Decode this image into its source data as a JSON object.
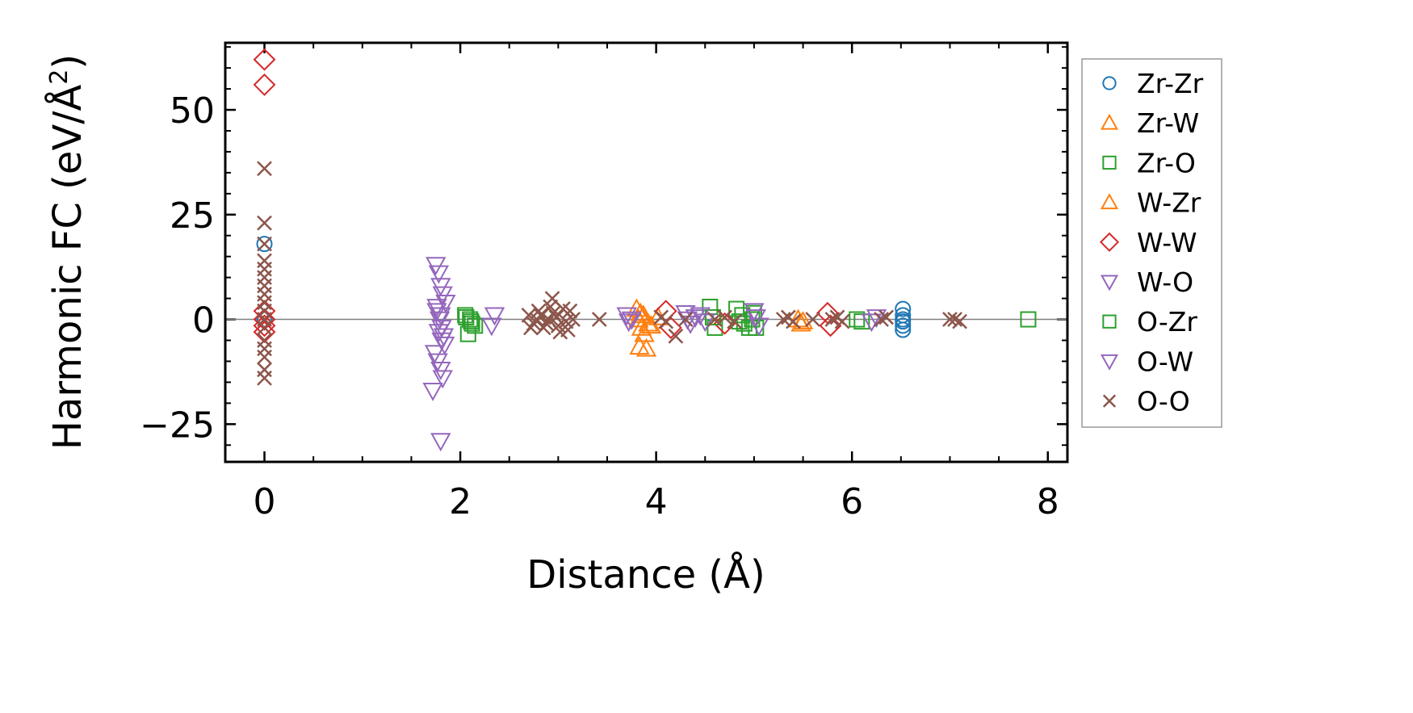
{
  "chart_data": {
    "type": "scatter",
    "xlabel": "Distance (Å)",
    "ylabel": "Harmonic FC (eV/Å",
    "ylabel_superscript": "2",
    "ylabel_suffix": ")",
    "xlim": [
      -0.4,
      8.2
    ],
    "ylim": [
      -34,
      66
    ],
    "xticks": [
      0,
      2,
      4,
      6,
      8
    ],
    "xtick_labels": [
      "0",
      "2",
      "4",
      "6",
      "8"
    ],
    "yticks": [
      -25,
      0,
      25,
      50
    ],
    "ytick_labels": [
      "−25",
      "0",
      "25",
      "50"
    ],
    "zero_line": 0,
    "legend_position": "right, outside plot",
    "series": [
      {
        "name": "Zr-Zr",
        "marker": "circle",
        "color": "#1f77b4",
        "x": [
          0,
          0,
          6.52,
          6.52,
          6.52,
          6.52,
          6.52,
          6.52
        ],
        "y": [
          18,
          0,
          2.5,
          1,
          0,
          -0.5,
          -1.5,
          -2.5
        ]
      },
      {
        "name": "Zr-W",
        "marker": "triangle-up",
        "color": "#ff7f0e",
        "x": [
          3.8,
          3.82,
          3.85,
          3.88,
          3.9,
          3.83,
          3.87,
          3.92,
          5.45,
          5.5
        ],
        "y": [
          2.5,
          0,
          -2,
          -3.5,
          -7,
          -6.5,
          1,
          -1,
          0,
          -0.5
        ]
      },
      {
        "name": "Zr-O",
        "marker": "square",
        "color": "#2ca02c",
        "x": [
          2.05,
          2.1,
          2.12,
          2.08,
          2.15,
          4.55,
          4.6,
          4.82,
          4.88,
          4.9,
          4.95,
          5.0,
          5.02,
          6.05,
          6.1,
          7.8
        ],
        "y": [
          1,
          0,
          -1,
          -3.5,
          -1.5,
          3,
          -2,
          2.5,
          1,
          -1,
          -2,
          1.5,
          -2,
          0,
          -0.5,
          0
        ]
      },
      {
        "name": "W-Zr",
        "marker": "triangle-up",
        "color": "#ff7f0e",
        "x": [
          3.84,
          3.95,
          4.02,
          5.48
        ],
        "y": [
          1.5,
          -1.5,
          0.5,
          -1
        ]
      },
      {
        "name": "W-W",
        "marker": "diamond",
        "color": "#d62728",
        "x": [
          0,
          0,
          0,
          0,
          0,
          0,
          4.1,
          4.15,
          4.7,
          5.75,
          5.78
        ],
        "y": [
          62,
          56,
          2,
          0,
          -1.5,
          -3,
          2,
          -2,
          -1,
          1.5,
          -1.5
        ]
      },
      {
        "name": "W-O",
        "marker": "triangle-down",
        "color": "#9467bd",
        "x": [
          1.75,
          1.78,
          1.8,
          1.82,
          1.85,
          1.76,
          1.79,
          1.81,
          1.83,
          1.84,
          1.74,
          1.77,
          1.8,
          1.82,
          1.78,
          1.8,
          1.72,
          1.8,
          2.35,
          2.32,
          3.7,
          3.75,
          4.3,
          4.35,
          4.4,
          4.5,
          5.0,
          5.05,
          6.25
        ],
        "y": [
          13,
          11,
          8,
          6,
          4,
          2,
          0,
          -2,
          -4,
          -6,
          -8,
          -10,
          -12,
          -14,
          -3,
          1,
          -17,
          -29,
          1,
          -1.5,
          1,
          0,
          1.5,
          -1,
          0.5,
          -0.5,
          2,
          -1.5,
          0.5
        ]
      },
      {
        "name": "O-Zr",
        "marker": "square",
        "color": "#2ca02c",
        "x": [
          2.06,
          2.11,
          4.58,
          4.85,
          4.98
        ],
        "y": [
          0.5,
          -0.5,
          0.5,
          -0.5,
          0
        ]
      },
      {
        "name": "O-W",
        "marker": "triangle-down",
        "color": "#9467bd",
        "x": [
          1.76,
          1.81,
          3.72,
          4.32,
          4.45,
          5.02,
          6.2
        ],
        "y": [
          3,
          -5,
          -0.5,
          0,
          1,
          0.5,
          -0.5
        ]
      },
      {
        "name": "O-O",
        "marker": "x",
        "color": "#8c564b",
        "x": [
          0,
          0,
          0,
          0,
          0,
          0,
          0,
          0,
          0,
          0,
          0,
          0,
          0,
          0,
          0,
          0,
          0,
          2.7,
          2.75,
          2.8,
          2.85,
          2.9,
          2.95,
          3.0,
          3.05,
          3.1,
          3.15,
          2.72,
          2.82,
          2.92,
          3.02,
          3.12,
          2.78,
          2.88,
          2.98,
          3.08,
          2.94,
          3.42,
          4.05,
          4.1,
          4.2,
          4.3,
          4.6,
          4.7,
          4.8,
          5.3,
          5.35,
          5.4,
          5.6,
          5.8,
          5.85,
          5.9,
          6.3,
          6.35,
          7.0,
          7.05,
          7.1
        ],
        "y": [
          36,
          23,
          18,
          14,
          12,
          10,
          8,
          6,
          4,
          2,
          0,
          -2,
          -5,
          -7,
          -9,
          -12,
          -14,
          1,
          -1,
          2,
          -2,
          0,
          1.5,
          -1.5,
          2.5,
          -2.5,
          0,
          -2,
          1,
          3,
          -3,
          2,
          0,
          -1,
          0.5,
          -0.5,
          5,
          0,
          0.5,
          -0.5,
          -4,
          0,
          0,
          0.5,
          -0.5,
          0,
          0.5,
          -0.5,
          0,
          0,
          0.5,
          -0.5,
          0,
          0.5,
          0,
          0,
          -0.5
        ]
      }
    ]
  }
}
